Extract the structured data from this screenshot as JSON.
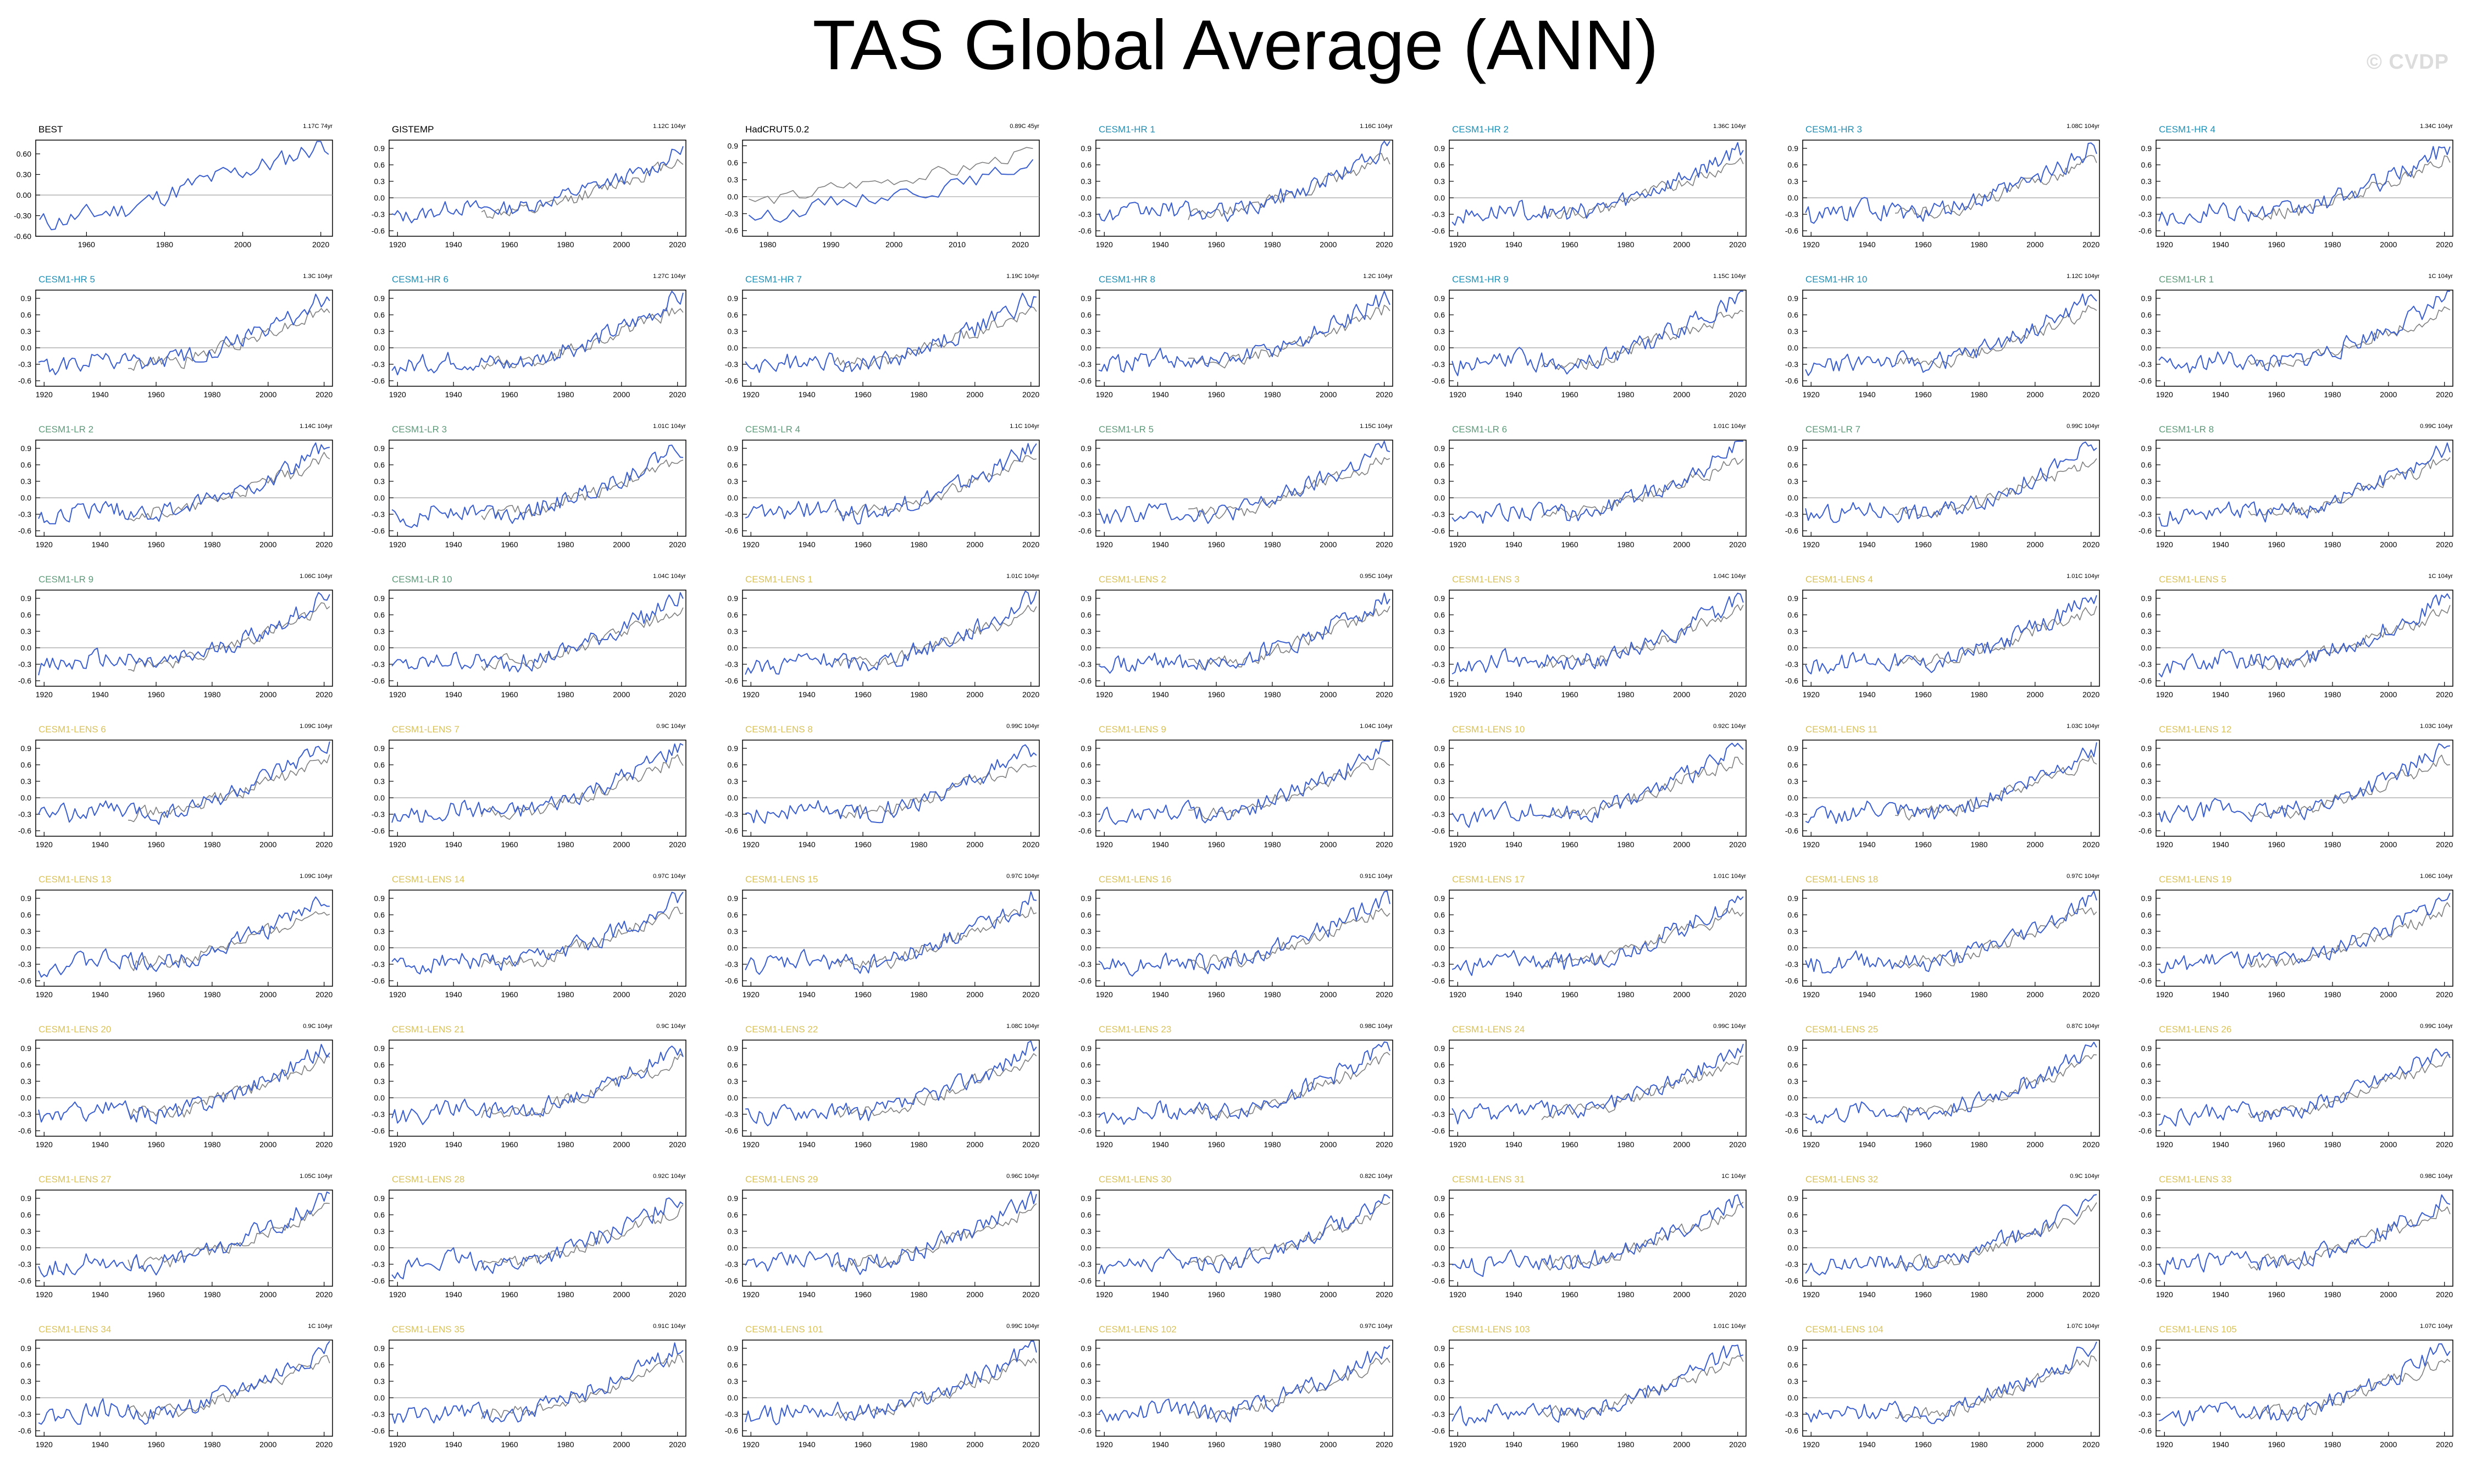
{
  "title": "TAS Global Average (ANN)",
  "watermark": "© CVDP",
  "colors": {
    "model_line": "#3a5fcd",
    "observation_line": "#7f7f7f",
    "zero_line": "#a0a0a0",
    "observation_label": "#000000",
    "cesm1_hr_label": "#1f8fb5",
    "cesm1_lr_label": "#5e9a7a",
    "cesm1_lens_label": "#d9c25a"
  },
  "chart_data": {
    "type": "line",
    "layout": "9 rows x 7 columns small multiples",
    "legend": "none",
    "grid": false,
    "panels": [
      {
        "name": "BEST",
        "group": "obs",
        "trend": "1.17C 74yr",
        "xlim": [
          1947,
          2023
        ],
        "xticks": [
          1960,
          1980,
          2000,
          2020
        ],
        "ylim": [
          -0.6,
          0.8
        ],
        "yticks": [
          "0.60",
          "0.30",
          "0.00",
          "-0.30",
          "-0.60"
        ],
        "ytickvals": [
          0.6,
          0.3,
          0.0,
          -0.3,
          -0.6
        ]
      },
      {
        "name": "GISTEMP",
        "group": "obs",
        "trend": "1.12C 104yr",
        "xlim": [
          1917,
          2023
        ],
        "xticks": [
          1920,
          1940,
          1960,
          1980,
          2000,
          2020
        ],
        "ylim": [
          -0.7,
          1.05
        ],
        "yticks": [
          "0.9",
          "0.6",
          "0.3",
          "0.0",
          "-0.3",
          "-0.6"
        ],
        "ytickvals": [
          0.9,
          0.6,
          0.3,
          0.0,
          -0.3,
          -0.6
        ]
      },
      {
        "name": "HadCRUT5.0.2",
        "group": "obs",
        "trend": "0.89C 45yr",
        "xlim": [
          1976,
          2023
        ],
        "xticks": [
          1980,
          1990,
          2000,
          2010,
          2020
        ],
        "ylim": [
          -0.7,
          1.0
        ],
        "yticks": [
          "0.9",
          "0.6",
          "0.3",
          "0.0",
          "-0.3",
          "-0.6"
        ],
        "ytickvals": [
          0.9,
          0.6,
          0.3,
          0.0,
          -0.3,
          -0.6
        ]
      },
      {
        "name": "CESM1-HR 1",
        "group": "hr",
        "trend": "1.16C 104yr"
      },
      {
        "name": "CESM1-HR 2",
        "group": "hr",
        "trend": "1.36C 104yr"
      },
      {
        "name": "CESM1-HR 3",
        "group": "hr",
        "trend": "1.08C 104yr"
      },
      {
        "name": "CESM1-HR 4",
        "group": "hr",
        "trend": "1.34C 104yr"
      },
      {
        "name": "CESM1-HR 5",
        "group": "hr",
        "trend": "1.3C 104yr"
      },
      {
        "name": "CESM1-HR 6",
        "group": "hr",
        "trend": "1.27C 104yr"
      },
      {
        "name": "CESM1-HR 7",
        "group": "hr",
        "trend": "1.19C 104yr"
      },
      {
        "name": "CESM1-HR 8",
        "group": "hr",
        "trend": "1.2C 104yr"
      },
      {
        "name": "CESM1-HR 9",
        "group": "hr",
        "trend": "1.15C 104yr"
      },
      {
        "name": "CESM1-HR 10",
        "group": "hr",
        "trend": "1.12C 104yr"
      },
      {
        "name": "CESM1-LR 1",
        "group": "lr",
        "trend": "1C 104yr"
      },
      {
        "name": "CESM1-LR 2",
        "group": "lr",
        "trend": "1.14C 104yr"
      },
      {
        "name": "CESM1-LR 3",
        "group": "lr",
        "trend": "1.01C 104yr"
      },
      {
        "name": "CESM1-LR 4",
        "group": "lr",
        "trend": "1.1C 104yr"
      },
      {
        "name": "CESM1-LR 5",
        "group": "lr",
        "trend": "1.15C 104yr"
      },
      {
        "name": "CESM1-LR 6",
        "group": "lr",
        "trend": "1.01C 104yr"
      },
      {
        "name": "CESM1-LR 7",
        "group": "lr",
        "trend": "0.99C 104yr"
      },
      {
        "name": "CESM1-LR 8",
        "group": "lr",
        "trend": "0.99C 104yr"
      },
      {
        "name": "CESM1-LR 9",
        "group": "lr",
        "trend": "1.06C 104yr"
      },
      {
        "name": "CESM1-LR 10",
        "group": "lr",
        "trend": "1.04C 104yr"
      },
      {
        "name": "CESM1-LENS 1",
        "group": "lens",
        "trend": "1.01C 104yr"
      },
      {
        "name": "CESM1-LENS 2",
        "group": "lens",
        "trend": "0.95C 104yr"
      },
      {
        "name": "CESM1-LENS 3",
        "group": "lens",
        "trend": "1.04C 104yr"
      },
      {
        "name": "CESM1-LENS 4",
        "group": "lens",
        "trend": "1.01C 104yr"
      },
      {
        "name": "CESM1-LENS 5",
        "group": "lens",
        "trend": "1C 104yr"
      },
      {
        "name": "CESM1-LENS 6",
        "group": "lens",
        "trend": "1.09C 104yr"
      },
      {
        "name": "CESM1-LENS 7",
        "group": "lens",
        "trend": "0.9C 104yr"
      },
      {
        "name": "CESM1-LENS 8",
        "group": "lens",
        "trend": "0.99C 104yr"
      },
      {
        "name": "CESM1-LENS 9",
        "group": "lens",
        "trend": "1.04C 104yr"
      },
      {
        "name": "CESM1-LENS 10",
        "group": "lens",
        "trend": "0.92C 104yr"
      },
      {
        "name": "CESM1-LENS 11",
        "group": "lens",
        "trend": "1.03C 104yr"
      },
      {
        "name": "CESM1-LENS 12",
        "group": "lens",
        "trend": "1.03C 104yr"
      },
      {
        "name": "CESM1-LENS 13",
        "group": "lens",
        "trend": "1.09C 104yr"
      },
      {
        "name": "CESM1-LENS 14",
        "group": "lens",
        "trend": "0.97C 104yr"
      },
      {
        "name": "CESM1-LENS 15",
        "group": "lens",
        "trend": "0.97C 104yr"
      },
      {
        "name": "CESM1-LENS 16",
        "group": "lens",
        "trend": "0.91C 104yr"
      },
      {
        "name": "CESM1-LENS 17",
        "group": "lens",
        "trend": "1.01C 104yr"
      },
      {
        "name": "CESM1-LENS 18",
        "group": "lens",
        "trend": "0.97C 104yr"
      },
      {
        "name": "CESM1-LENS 19",
        "group": "lens",
        "trend": "1.06C 104yr"
      },
      {
        "name": "CESM1-LENS 20",
        "group": "lens",
        "trend": "0.9C 104yr"
      },
      {
        "name": "CESM1-LENS 21",
        "group": "lens",
        "trend": "0.9C 104yr"
      },
      {
        "name": "CESM1-LENS 22",
        "group": "lens",
        "trend": "1.08C 104yr"
      },
      {
        "name": "CESM1-LENS 23",
        "group": "lens",
        "trend": "0.98C 104yr"
      },
      {
        "name": "CESM1-LENS 24",
        "group": "lens",
        "trend": "0.99C 104yr"
      },
      {
        "name": "CESM1-LENS 25",
        "group": "lens",
        "trend": "0.87C 104yr"
      },
      {
        "name": "CESM1-LENS 26",
        "group": "lens",
        "trend": "0.99C 104yr"
      },
      {
        "name": "CESM1-LENS 27",
        "group": "lens",
        "trend": "1.05C 104yr"
      },
      {
        "name": "CESM1-LENS 28",
        "group": "lens",
        "trend": "0.92C 104yr"
      },
      {
        "name": "CESM1-LENS 29",
        "group": "lens",
        "trend": "0.96C 104yr"
      },
      {
        "name": "CESM1-LENS 30",
        "group": "lens",
        "trend": "0.82C 104yr"
      },
      {
        "name": "CESM1-LENS 31",
        "group": "lens",
        "trend": "1C 104yr"
      },
      {
        "name": "CESM1-LENS 32",
        "group": "lens",
        "trend": "0.9C 104yr"
      },
      {
        "name": "CESM1-LENS 33",
        "group": "lens",
        "trend": "0.98C 104yr"
      },
      {
        "name": "CESM1-LENS 34",
        "group": "lens",
        "trend": "1C 104yr"
      },
      {
        "name": "CESM1-LENS 35",
        "group": "lens",
        "trend": "0.91C 104yr"
      },
      {
        "name": "CESM1-LENS 101",
        "group": "lens",
        "trend": "0.99C 104yr"
      },
      {
        "name": "CESM1-LENS 102",
        "group": "lens",
        "trend": "0.97C 104yr"
      },
      {
        "name": "CESM1-LENS 103",
        "group": "lens",
        "trend": "1.01C 104yr"
      },
      {
        "name": "CESM1-LENS 104",
        "group": "lens",
        "trend": "1.07C 104yr"
      },
      {
        "name": "CESM1-LENS 105",
        "group": "lens",
        "trend": "1.07C 104yr"
      }
    ],
    "model_defaults": {
      "xlim": [
        1917,
        2023
      ],
      "xticks": [
        1920,
        1940,
        1960,
        1980,
        2000,
        2020
      ],
      "ylim": [
        -0.7,
        1.05
      ],
      "yticks": [
        "0.9",
        "0.6",
        "0.3",
        "0.0",
        "-0.3",
        "-0.6"
      ],
      "ytickvals": [
        0.9,
        0.6,
        0.3,
        0.0,
        -0.3,
        -0.6
      ]
    },
    "series_templates": {
      "model_anomaly": {
        "x": [
          1920,
          1930,
          1940,
          1950,
          1960,
          1970,
          1980,
          1990,
          2000,
          2010,
          2020
        ],
        "y": [
          -0.35,
          -0.3,
          -0.2,
          -0.25,
          -0.3,
          -0.2,
          -0.05,
          0.15,
          0.35,
          0.6,
          0.9
        ]
      },
      "observed_reference": {
        "x": [
          1950,
          1960,
          1970,
          1980,
          1990,
          2000,
          2010,
          2020
        ],
        "y": [
          -0.3,
          -0.25,
          -0.25,
          -0.05,
          0.1,
          0.3,
          0.45,
          0.7
        ]
      },
      "best_obs": {
        "x": [
          1950,
          1960,
          1970,
          1980,
          1990,
          2000,
          2010,
          2020
        ],
        "y": [
          -0.4,
          -0.3,
          -0.2,
          0.0,
          0.2,
          0.35,
          0.5,
          0.75
        ]
      },
      "gistemp_obs": {
        "x": [
          1920,
          1930,
          1940,
          1950,
          1960,
          1970,
          1980,
          1990,
          2000,
          2010,
          2020
        ],
        "y": [
          -0.35,
          -0.3,
          -0.15,
          -0.2,
          -0.2,
          -0.1,
          0.05,
          0.2,
          0.35,
          0.5,
          0.85
        ]
      },
      "hadcrut_obs": {
        "x": [
          1977,
          1985,
          1990,
          2000,
          2010,
          2015,
          2020,
          2023
        ],
        "y": [
          -0.4,
          -0.25,
          -0.1,
          0.05,
          0.2,
          0.35,
          0.55,
          0.6
        ]
      },
      "hadcrut_ref": {
        "x": [
          1977,
          1985,
          1990,
          2000,
          2010,
          2015,
          2020,
          2023
        ],
        "y": [
          -0.1,
          0.0,
          0.15,
          0.3,
          0.45,
          0.6,
          0.75,
          0.8
        ]
      }
    }
  }
}
